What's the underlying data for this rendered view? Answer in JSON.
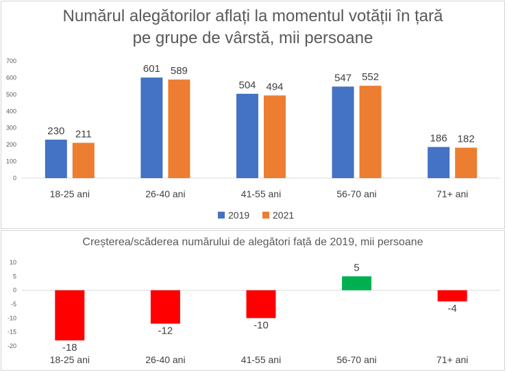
{
  "charts": [
    {
      "chart_data": {
        "type": "bar",
        "title": "Numărul alegătorilor aflați la momentul votății în țară\npe grupe de vârstă, mii persoane",
        "title_lines": [
          "Numărul alegătorilor aflați la momentul votății în țară",
          "pe grupe de vârstă, mii persoane"
        ],
        "categories": [
          "18-25 ani",
          "26-40 ani",
          "41-55 ani",
          "56-70 ani",
          "71+ ani"
        ],
        "series": [
          {
            "name": "2019",
            "values": [
              230,
              601,
              504,
              547,
              186
            ],
            "color": "#4472c4"
          },
          {
            "name": "2021",
            "values": [
              211,
              589,
              494,
              552,
              182
            ],
            "color": "#ed7d31"
          }
        ],
        "ylim": [
          0,
          700
        ],
        "yticks": [
          0,
          100,
          200,
          300,
          400,
          500,
          600,
          700
        ],
        "grid": false,
        "data_labels": true,
        "legend": "bottom"
      }
    },
    {
      "chart_data": {
        "type": "bar",
        "title": "Creșterea/scăderea numărului de alegători față de 2019, mii persoane",
        "categories": [
          "18-25 ani",
          "26-40 ani",
          "41-55 ani",
          "56-70 ani",
          "71+ ani"
        ],
        "values": [
          -18,
          -12,
          -10,
          5,
          -4
        ],
        "colors": {
          "positive": "#00b050",
          "negative": "#ff0000"
        },
        "ylim": [
          -20,
          10
        ],
        "yticks": [
          -20,
          -15,
          -10,
          -5,
          0,
          5,
          10
        ],
        "grid": false,
        "data_labels": true
      }
    }
  ]
}
